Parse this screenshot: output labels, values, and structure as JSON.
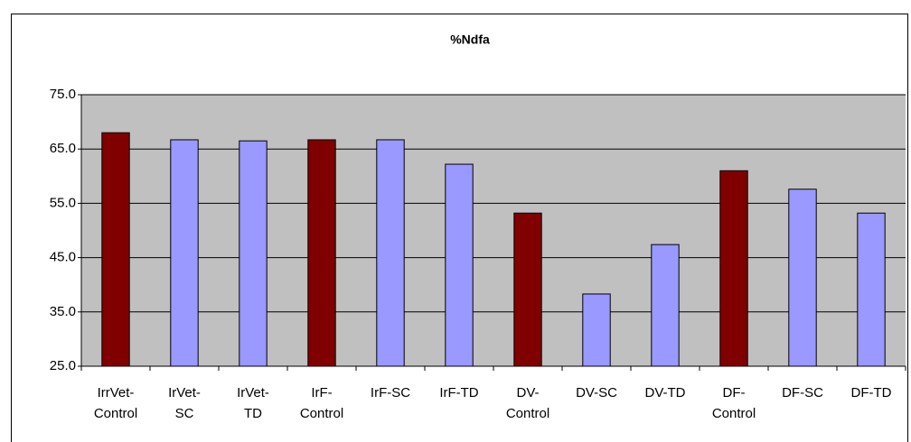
{
  "chart_data": {
    "type": "bar",
    "title": "%Ndfa",
    "categories": [
      "IrrVet-Control",
      "IrVet-SC",
      "IrVet-TD",
      "IrF-Control",
      "IrF-SC",
      "IrF-TD",
      "DV-Control",
      "DV-SC",
      "DV-TD",
      "DF-Control",
      "DF-SC",
      "DF-TD"
    ],
    "values": [
      68.0,
      66.7,
      66.5,
      66.7,
      66.7,
      62.2,
      53.2,
      38.3,
      47.4,
      61.0,
      57.6,
      53.2
    ],
    "colors": [
      "#800000",
      "#9999ff",
      "#9999ff",
      "#800000",
      "#9999ff",
      "#9999ff",
      "#800000",
      "#9999ff",
      "#9999ff",
      "#800000",
      "#9999ff",
      "#9999ff"
    ],
    "ylim": [
      25,
      75
    ],
    "yticks": [
      {
        "value": 25,
        "label": "25.0"
      },
      {
        "value": 35,
        "label": "35.0"
      },
      {
        "value": 45,
        "label": "45.0"
      },
      {
        "value": 55,
        "label": "55.0"
      },
      {
        "value": 65,
        "label": "65.0"
      },
      {
        "value": 75,
        "label": "75.0"
      }
    ],
    "grid": true
  }
}
